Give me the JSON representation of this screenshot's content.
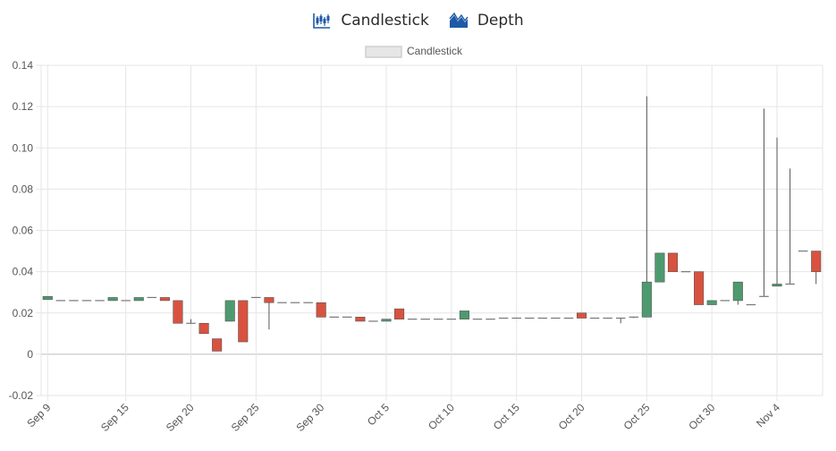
{
  "tabs": [
    {
      "label": "Candlestick",
      "icon": "candlestick-chart-icon"
    },
    {
      "label": "Depth",
      "icon": "depth-chart-icon"
    }
  ],
  "colors": {
    "up": "#4e9a6f",
    "down": "#d9523f",
    "wick": "#555555",
    "grid": "#e6e6e6",
    "tab_icon": "#1f5aa6"
  },
  "chart_data": {
    "type": "candlestick",
    "legend": [
      "Candlestick"
    ],
    "legend_position": "top-center",
    "grid": true,
    "ylim": [
      -0.02,
      0.14
    ],
    "yticks": [
      "-0.02",
      "0",
      "0.02",
      "0.04",
      "0.06",
      "0.08",
      "0.10",
      "0.12",
      "0.14"
    ],
    "xticks": [
      "Sep 9",
      "Sep 15",
      "Sep 20",
      "Sep 25",
      "Sep 30",
      "Oct 5",
      "Oct 10",
      "Oct 15",
      "Oct 20",
      "Oct 25",
      "Oct 30",
      "Nov 4"
    ],
    "candles": [
      {
        "date": "Sep 9",
        "o": 0.0265,
        "h": 0.028,
        "l": 0.0265,
        "c": 0.028
      },
      {
        "date": "Sep 10",
        "o": 0.026,
        "h": 0.026,
        "l": 0.026,
        "c": 0.026
      },
      {
        "date": "Sep 11",
        "o": 0.026,
        "h": 0.026,
        "l": 0.026,
        "c": 0.026
      },
      {
        "date": "Sep 12",
        "o": 0.026,
        "h": 0.026,
        "l": 0.026,
        "c": 0.026
      },
      {
        "date": "Sep 13",
        "o": 0.026,
        "h": 0.026,
        "l": 0.026,
        "c": 0.026
      },
      {
        "date": "Sep 14",
        "o": 0.026,
        "h": 0.0275,
        "l": 0.026,
        "c": 0.0275
      },
      {
        "date": "Sep 15",
        "o": 0.026,
        "h": 0.026,
        "l": 0.026,
        "c": 0.026
      },
      {
        "date": "Sep 16",
        "o": 0.026,
        "h": 0.0275,
        "l": 0.026,
        "c": 0.0275
      },
      {
        "date": "Sep 17",
        "o": 0.0275,
        "h": 0.0275,
        "l": 0.0275,
        "c": 0.0275
      },
      {
        "date": "Sep 18",
        "o": 0.0275,
        "h": 0.0275,
        "l": 0.026,
        "c": 0.026
      },
      {
        "date": "Sep 19",
        "o": 0.026,
        "h": 0.026,
        "l": 0.015,
        "c": 0.015
      },
      {
        "date": "Sep 20",
        "o": 0.015,
        "h": 0.017,
        "l": 0.015,
        "c": 0.015
      },
      {
        "date": "Sep 21",
        "o": 0.015,
        "h": 0.015,
        "l": 0.01,
        "c": 0.01
      },
      {
        "date": "Sep 22",
        "o": 0.0075,
        "h": 0.0075,
        "l": 0.0015,
        "c": 0.0015
      },
      {
        "date": "Sep 23",
        "o": 0.016,
        "h": 0.026,
        "l": 0.016,
        "c": 0.026
      },
      {
        "date": "Sep 24",
        "o": 0.026,
        "h": 0.026,
        "l": 0.006,
        "c": 0.006
      },
      {
        "date": "Sep 25",
        "o": 0.0275,
        "h": 0.0275,
        "l": 0.0275,
        "c": 0.0275
      },
      {
        "date": "Sep 26",
        "o": 0.0275,
        "h": 0.0275,
        "l": 0.012,
        "c": 0.025
      },
      {
        "date": "Sep 27",
        "o": 0.025,
        "h": 0.025,
        "l": 0.025,
        "c": 0.025
      },
      {
        "date": "Sep 28",
        "o": 0.025,
        "h": 0.025,
        "l": 0.025,
        "c": 0.025
      },
      {
        "date": "Sep 29",
        "o": 0.025,
        "h": 0.025,
        "l": 0.025,
        "c": 0.025
      },
      {
        "date": "Sep 30",
        "o": 0.025,
        "h": 0.025,
        "l": 0.018,
        "c": 0.018
      },
      {
        "date": "Oct 1",
        "o": 0.018,
        "h": 0.018,
        "l": 0.018,
        "c": 0.018
      },
      {
        "date": "Oct 2",
        "o": 0.018,
        "h": 0.018,
        "l": 0.018,
        "c": 0.018
      },
      {
        "date": "Oct 3",
        "o": 0.018,
        "h": 0.018,
        "l": 0.016,
        "c": 0.016
      },
      {
        "date": "Oct 4",
        "o": 0.016,
        "h": 0.016,
        "l": 0.016,
        "c": 0.016
      },
      {
        "date": "Oct 5",
        "o": 0.016,
        "h": 0.017,
        "l": 0.016,
        "c": 0.017
      },
      {
        "date": "Oct 6",
        "o": 0.022,
        "h": 0.022,
        "l": 0.017,
        "c": 0.017
      },
      {
        "date": "Oct 7",
        "o": 0.017,
        "h": 0.017,
        "l": 0.017,
        "c": 0.017
      },
      {
        "date": "Oct 8",
        "o": 0.017,
        "h": 0.017,
        "l": 0.017,
        "c": 0.017
      },
      {
        "date": "Oct 9",
        "o": 0.017,
        "h": 0.017,
        "l": 0.017,
        "c": 0.017
      },
      {
        "date": "Oct 10",
        "o": 0.017,
        "h": 0.017,
        "l": 0.017,
        "c": 0.017
      },
      {
        "date": "Oct 11",
        "o": 0.017,
        "h": 0.021,
        "l": 0.017,
        "c": 0.021
      },
      {
        "date": "Oct 12",
        "o": 0.017,
        "h": 0.017,
        "l": 0.017,
        "c": 0.017
      },
      {
        "date": "Oct 13",
        "o": 0.017,
        "h": 0.017,
        "l": 0.017,
        "c": 0.017
      },
      {
        "date": "Oct 14",
        "o": 0.0175,
        "h": 0.0175,
        "l": 0.0175,
        "c": 0.0175
      },
      {
        "date": "Oct 15",
        "o": 0.0175,
        "h": 0.0175,
        "l": 0.0175,
        "c": 0.0175
      },
      {
        "date": "Oct 16",
        "o": 0.0175,
        "h": 0.0175,
        "l": 0.0175,
        "c": 0.0175
      },
      {
        "date": "Oct 17",
        "o": 0.0175,
        "h": 0.0175,
        "l": 0.0175,
        "c": 0.0175
      },
      {
        "date": "Oct 18",
        "o": 0.0175,
        "h": 0.0175,
        "l": 0.0175,
        "c": 0.0175
      },
      {
        "date": "Oct 19",
        "o": 0.0175,
        "h": 0.0175,
        "l": 0.0175,
        "c": 0.0175
      },
      {
        "date": "Oct 20",
        "o": 0.02,
        "h": 0.02,
        "l": 0.0175,
        "c": 0.0175
      },
      {
        "date": "Oct 21",
        "o": 0.0175,
        "h": 0.0175,
        "l": 0.0175,
        "c": 0.0175
      },
      {
        "date": "Oct 22",
        "o": 0.0175,
        "h": 0.0175,
        "l": 0.0175,
        "c": 0.0175
      },
      {
        "date": "Oct 23",
        "o": 0.0175,
        "h": 0.0175,
        "l": 0.015,
        "c": 0.0175
      },
      {
        "date": "Oct 24",
        "o": 0.0175,
        "h": 0.018,
        "l": 0.0175,
        "c": 0.018
      },
      {
        "date": "Oct 25",
        "o": 0.018,
        "h": 0.125,
        "l": 0.018,
        "c": 0.035
      },
      {
        "date": "Oct 26",
        "o": 0.035,
        "h": 0.049,
        "l": 0.035,
        "c": 0.049
      },
      {
        "date": "Oct 27",
        "o": 0.049,
        "h": 0.049,
        "l": 0.04,
        "c": 0.04
      },
      {
        "date": "Oct 28",
        "o": 0.04,
        "h": 0.04,
        "l": 0.04,
        "c": 0.04
      },
      {
        "date": "Oct 29",
        "o": 0.04,
        "h": 0.04,
        "l": 0.024,
        "c": 0.024
      },
      {
        "date": "Oct 30",
        "o": 0.024,
        "h": 0.026,
        "l": 0.024,
        "c": 0.026
      },
      {
        "date": "Oct 31",
        "o": 0.026,
        "h": 0.026,
        "l": 0.026,
        "c": 0.026
      },
      {
        "date": "Nov 1",
        "o": 0.026,
        "h": 0.035,
        "l": 0.024,
        "c": 0.035
      },
      {
        "date": "Nov 2",
        "o": 0.024,
        "h": 0.024,
        "l": 0.024,
        "c": 0.024
      },
      {
        "date": "Nov 3",
        "o": 0.028,
        "h": 0.119,
        "l": 0.028,
        "c": 0.028
      },
      {
        "date": "Nov 4",
        "o": 0.033,
        "h": 0.105,
        "l": 0.033,
        "c": 0.034
      },
      {
        "date": "Nov 5",
        "o": 0.034,
        "h": 0.09,
        "l": 0.034,
        "c": 0.034
      },
      {
        "date": "Nov 6",
        "o": 0.05,
        "h": 0.05,
        "l": 0.05,
        "c": 0.05
      },
      {
        "date": "Nov 7",
        "o": 0.05,
        "h": 0.05,
        "l": 0.034,
        "c": 0.04
      }
    ]
  }
}
